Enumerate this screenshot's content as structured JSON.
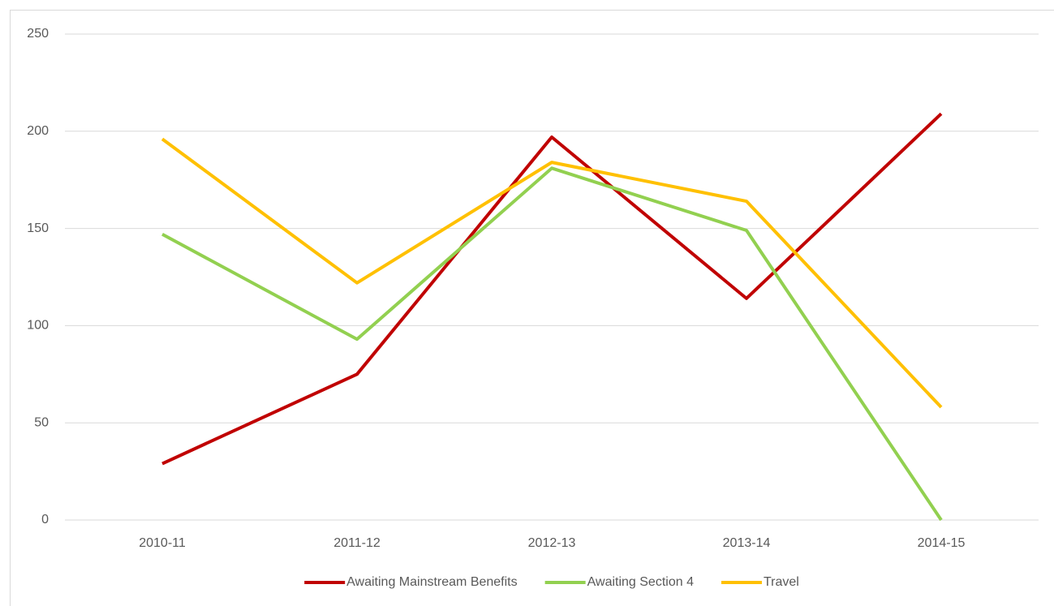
{
  "chart_data": {
    "type": "line",
    "categories": [
      "2010-11",
      "2011-12",
      "2012-13",
      "2013-14",
      "2014-15"
    ],
    "series": [
      {
        "name": "Awaiting Mainstream Benefits",
        "color": "#c00000",
        "values": [
          29,
          75,
          197,
          114,
          209
        ]
      },
      {
        "name": "Awaiting Section 4",
        "color": "#92d050",
        "values": [
          147,
          93,
          181,
          149,
          0
        ]
      },
      {
        "name": "Travel",
        "color": "#ffc000",
        "values": [
          196,
          122,
          184,
          164,
          58
        ]
      }
    ],
    "ylim": [
      0,
      250
    ],
    "yticks": [
      0,
      50,
      100,
      150,
      200,
      250
    ],
    "grid": true,
    "legend": "bottom"
  }
}
